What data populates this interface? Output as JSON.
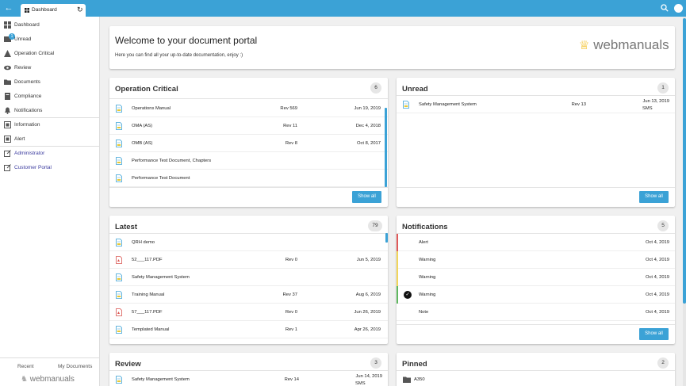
{
  "header": {
    "tab_label": "Dashboard",
    "colors": {
      "accent": "#3ba2d6"
    }
  },
  "sidebar": {
    "items": [
      {
        "label": "Dashboard",
        "icon": "dashboard-icon"
      },
      {
        "label": "Unread",
        "icon": "unread-icon",
        "badge": "1"
      },
      {
        "label": "Operation Critical",
        "icon": "warning-triangle-icon"
      },
      {
        "label": "Review",
        "icon": "eye-icon"
      },
      {
        "label": "Documents",
        "icon": "folder-icon"
      },
      {
        "label": "Compliance",
        "icon": "compliance-icon"
      },
      {
        "label": "Notifications",
        "icon": "bell-icon"
      },
      {
        "label": "Information",
        "icon": "information-icon"
      },
      {
        "label": "Alert",
        "icon": "alert-icon"
      },
      {
        "label": "Administrator",
        "icon": "external-link-icon"
      },
      {
        "label": "Customer Portal",
        "icon": "external-link-icon"
      }
    ],
    "footer": {
      "recent": "Recent",
      "my_documents": "My Documents",
      "logo_text": "webmanuals"
    }
  },
  "welcome": {
    "title": "Welcome to your document portal",
    "subtitle": "Here you can find all your up-to-date documentation, enjoy :)",
    "logo_text": "webmanuals"
  },
  "operation_critical": {
    "title": "Operation Critical",
    "count": "6",
    "show_all": "Show all",
    "rows": [
      {
        "name": "Operations Manual",
        "rev": "Rev 569",
        "date": "Jun 19, 2019",
        "type": "doc"
      },
      {
        "name": "OMA (AS)",
        "rev": "Rev 11",
        "date": "Dec 4, 2018",
        "type": "doc"
      },
      {
        "name": "OMB (AS)",
        "rev": "Rev 8",
        "date": "Oct 8, 2017",
        "type": "doc"
      },
      {
        "name": "Performance Test Document, Chapters",
        "rev": "",
        "date": "",
        "type": "doc"
      },
      {
        "name": "Performance Test Document",
        "rev": "",
        "date": "",
        "type": "doc"
      }
    ]
  },
  "unread": {
    "title": "Unread",
    "count": "1",
    "show_all": "Show all",
    "rows": [
      {
        "name": "Safety Management System",
        "rev": "Rev 13",
        "date": "Jun 13, 2019",
        "date_sub": "SMS",
        "type": "doc"
      }
    ]
  },
  "latest": {
    "title": "Latest",
    "count": "79",
    "rows": [
      {
        "name": "QRH demo",
        "rev": "",
        "date": "",
        "type": "doc"
      },
      {
        "name": "52___117.PDF",
        "rev": "Rev 0",
        "date": "Jun 5, 2019",
        "type": "pdf"
      },
      {
        "name": "Safety Management System",
        "rev": "",
        "date": "",
        "type": "doc"
      },
      {
        "name": "Training Manual",
        "rev": "Rev 37",
        "date": "Aug 6, 2019",
        "type": "doc"
      },
      {
        "name": "57___117.PDF",
        "rev": "Rev 0",
        "date": "Jun 26, 2019",
        "type": "pdf"
      },
      {
        "name": "Templated Manual",
        "rev": "Rev 1",
        "date": "Apr 26, 2019",
        "type": "doc"
      }
    ]
  },
  "notifications": {
    "title": "Notifications",
    "count": "5",
    "show_all": "Show all",
    "rows": [
      {
        "label": "Alert",
        "date": "Oct 4, 2019",
        "color": "#e05a5a",
        "checked": false
      },
      {
        "label": "Warning",
        "date": "Oct 4, 2019",
        "color": "#f2d65a",
        "checked": false
      },
      {
        "label": "Warning",
        "date": "Oct 4, 2019",
        "color": "#f2d65a",
        "checked": false
      },
      {
        "label": "Warning",
        "date": "Oct 4, 2019",
        "color": "#5fb85f",
        "checked": true
      },
      {
        "label": "Note",
        "date": "Oct 4, 2019",
        "color": "",
        "checked": false
      }
    ]
  },
  "review": {
    "title": "Review",
    "count": "3",
    "rows": [
      {
        "name": "Safety Management System",
        "rev": "Rev 14",
        "date": "Jun 14, 2019",
        "date_sub": "SMS",
        "type": "doc"
      }
    ]
  },
  "pinned": {
    "title": "Pinned",
    "count": "2",
    "rows": [
      {
        "name": "A350",
        "type": "folder"
      }
    ]
  }
}
